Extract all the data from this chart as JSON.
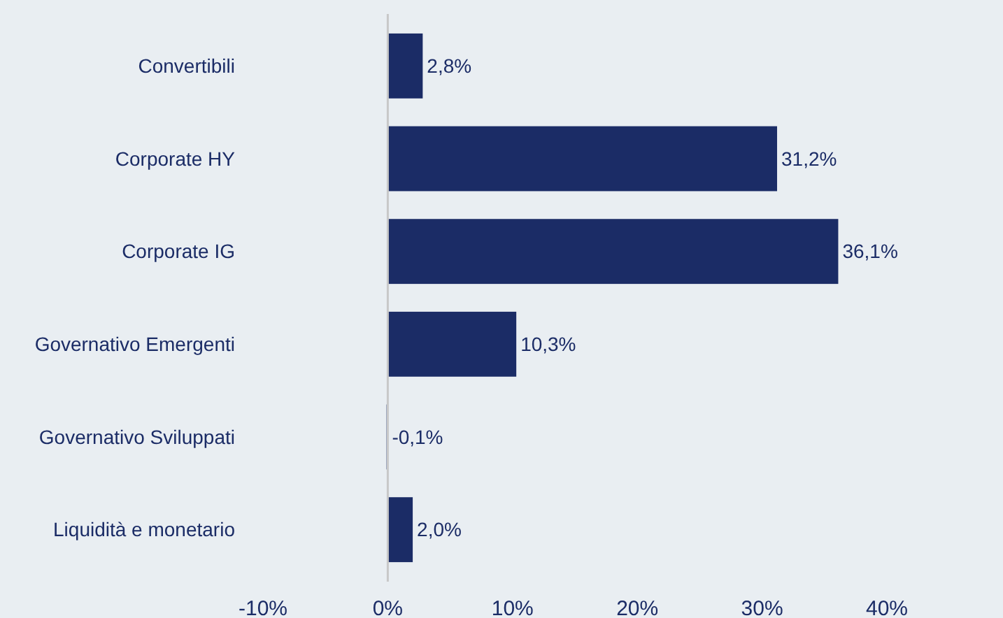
{
  "chart_data": {
    "type": "bar",
    "orientation": "horizontal",
    "categories": [
      "Convertibili",
      "Corporate HY",
      "Corporate IG",
      "Governativo Emergenti",
      "Governativo Sviluppati",
      "Liquidità e monetario"
    ],
    "values": [
      2.8,
      31.2,
      36.1,
      10.3,
      -0.1,
      2.0
    ],
    "value_labels": [
      "2,8%",
      "31,2%",
      "36,1%",
      "10,3%",
      "-0,1%",
      "2,0%"
    ],
    "color": "#1b2c66",
    "xlim": [
      -10,
      40
    ],
    "xticks": [
      {
        "value": -10,
        "label": "-10%"
      },
      {
        "value": 0,
        "label": "0%"
      },
      {
        "value": 10,
        "label": "10%"
      },
      {
        "value": 20,
        "label": "20%"
      },
      {
        "value": 30,
        "label": "30%"
      },
      {
        "value": 40,
        "label": "40%"
      }
    ]
  }
}
